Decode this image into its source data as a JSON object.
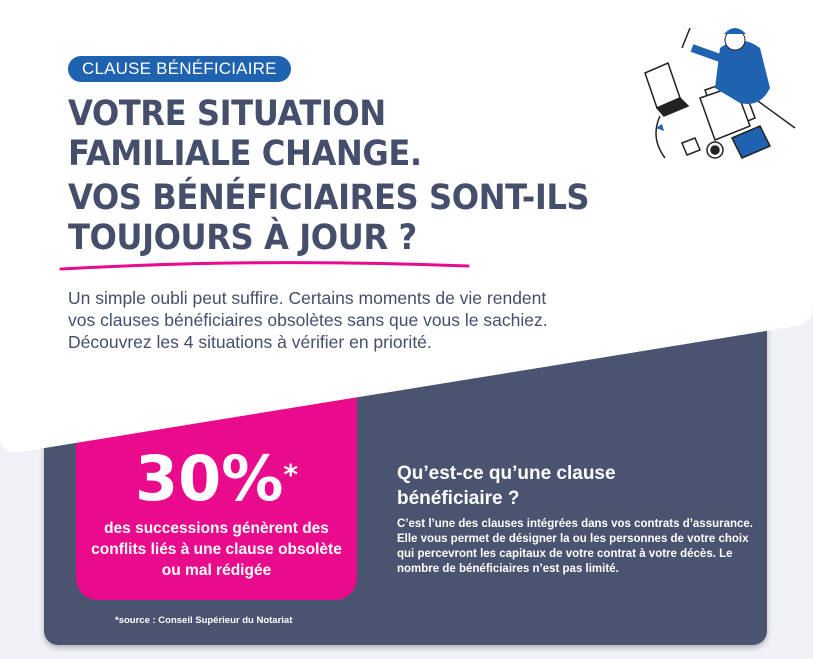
{
  "badge": "CLAUSE BÉNÉFICIAIRE",
  "title_lines": [
    "VOTRE SITUATION",
    "FAMILIALE CHANGE.",
    "VOS BÉNÉFICIAIRES SONT-ILS",
    "TOUJOURS À JOUR ?"
  ],
  "intro_lines": [
    "Un simple oubli peut suffire. Certains moments de vie rendent",
    "vos clauses bénéficiaires obsolètes sans que vous le sachiez.",
    "Découvrez les 4 situations à vérifier en priorité."
  ],
  "stat": {
    "value": "30%",
    "asterisk": "*",
    "description": "des successions génèrent des conflits liés à une clause obsolète ou mal rédigée",
    "source": "*source : Conseil Supérieur du Notariat"
  },
  "definition": {
    "title": "Qu’est-ce qu’une clause bénéficiaire ?",
    "text": "C’est l’une des clauses intégrées dans vos contrats d’assurance. Elle vous permet de désigner la ou les personnes de votre choix qui percevront les capitaux de votre contrat à votre décès. Le nombre de bénéficiaires n’est pas limité."
  },
  "colors": {
    "navy": "#4a5470",
    "pink": "#ea0a8c",
    "blue": "#1e62b0",
    "text": "#454f6b"
  },
  "illustration": "person-working-at-desk-illustration"
}
